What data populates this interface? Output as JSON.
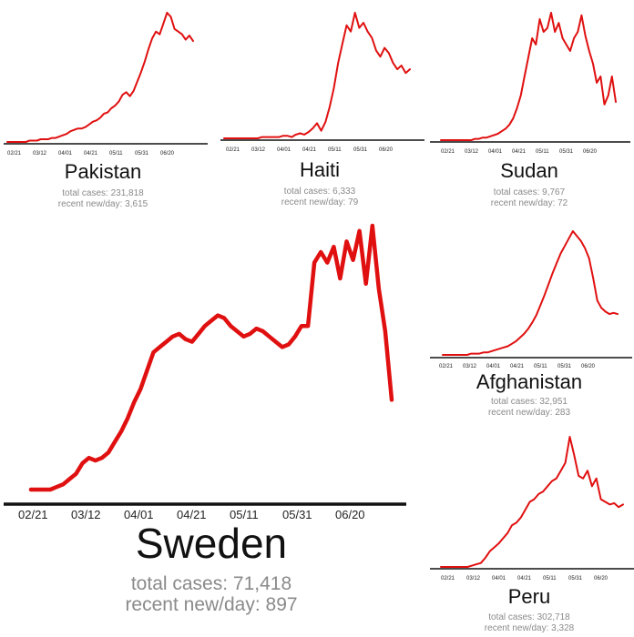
{
  "theme": {
    "line_color": "#e01010",
    "axis_color": "#111111",
    "stat_color": "#8a8a8a"
  },
  "chart_data": [
    {
      "id": "pakistan",
      "type": "line",
      "country": "Pakistan",
      "title": "Pakistan",
      "total_cases_label": "total cases: 231,818",
      "recent_label": "recent new/day: 3,615",
      "x_ticks": [
        "02/21",
        "03/12",
        "04/01",
        "04/21",
        "05/11",
        "05/31",
        "06/20"
      ],
      "values": [
        0,
        0,
        0,
        0,
        0,
        0,
        1,
        1,
        1,
        2,
        2,
        2,
        3,
        3,
        4,
        5,
        6,
        8,
        9,
        10,
        10,
        11,
        13,
        15,
        16,
        18,
        21,
        22,
        25,
        27,
        30,
        35,
        37,
        34,
        38,
        45,
        52,
        60,
        69,
        77,
        82,
        80,
        88,
        96,
        93,
        84,
        82,
        80,
        76,
        79,
        75
      ]
    },
    {
      "id": "haiti",
      "type": "line",
      "country": "Haiti",
      "title": "Haiti",
      "total_cases_label": "total cases: 6,333",
      "recent_label": "recent new/day: 79",
      "x_ticks": [
        "02/21",
        "03/12",
        "04/01",
        "04/21",
        "05/11",
        "05/31",
        "06/20"
      ],
      "values": [
        0,
        0,
        0,
        0,
        0,
        0,
        0,
        0,
        0,
        1,
        1,
        1,
        1,
        1,
        2,
        2,
        1,
        3,
        4,
        3,
        5,
        8,
        12,
        6,
        13,
        25,
        40,
        60,
        75,
        90,
        85,
        100,
        88,
        92,
        85,
        80,
        70,
        65,
        72,
        68,
        60,
        55,
        58,
        52,
        55
      ]
    },
    {
      "id": "sudan",
      "type": "line",
      "country": "Sudan",
      "title": "Sudan",
      "total_cases_label": "total cases: 9,767",
      "recent_label": "recent new/day: 72",
      "x_ticks": [
        "02/21",
        "03/12",
        "04/01",
        "04/21",
        "05/11",
        "05/31",
        "06/20"
      ],
      "values": [
        0,
        0,
        0,
        0,
        0,
        0,
        0,
        0,
        0,
        1,
        1,
        2,
        2,
        3,
        4,
        5,
        7,
        9,
        12,
        17,
        25,
        35,
        50,
        65,
        80,
        75,
        95,
        85,
        88,
        100,
        85,
        92,
        80,
        75,
        70,
        80,
        85,
        98,
        82,
        70,
        60,
        45,
        50,
        28,
        35,
        50,
        30
      ]
    },
    {
      "id": "afghanistan",
      "type": "line",
      "country": "Afghanistan",
      "title": "Afghanistan",
      "total_cases_label": "total cases: 32,951",
      "recent_label": "recent new/day: 283",
      "x_ticks": [
        "02/21",
        "03/12",
        "04/01",
        "04/21",
        "05/11",
        "05/31",
        "06/20"
      ],
      "values": [
        0,
        0,
        0,
        0,
        0,
        0,
        0,
        1,
        1,
        1,
        2,
        2,
        3,
        4,
        5,
        6,
        7,
        9,
        11,
        14,
        17,
        21,
        26,
        32,
        40,
        48,
        57,
        66,
        74,
        82,
        88,
        94,
        100,
        96,
        92,
        86,
        78,
        62,
        44,
        38,
        35,
        33,
        34,
        33
      ]
    },
    {
      "id": "peru",
      "type": "line",
      "country": "Peru",
      "title": "Peru",
      "total_cases_label": "total cases: 302,718",
      "recent_label": "recent new/day: 3,328",
      "x_ticks": [
        "02/21",
        "03/12",
        "04/01",
        "04/21",
        "05/11",
        "05/31",
        "06/20"
      ],
      "values": [
        0,
        0,
        0,
        0,
        0,
        0,
        0,
        1,
        2,
        3,
        7,
        12,
        15,
        18,
        22,
        26,
        32,
        34,
        38,
        44,
        50,
        52,
        56,
        58,
        62,
        66,
        68,
        74,
        80,
        100,
        86,
        70,
        68,
        74,
        62,
        68,
        52,
        50,
        48,
        49,
        46,
        48
      ]
    },
    {
      "id": "sweden",
      "type": "line",
      "country": "Sweden",
      "title": "Sweden",
      "total_cases_label": "total cases: 71,418",
      "recent_label": "recent new/day: 897",
      "x_ticks": [
        "02/21",
        "03/12",
        "04/01",
        "04/21",
        "05/11",
        "05/31",
        "06/20"
      ],
      "values": [
        0,
        0,
        0,
        0,
        1,
        2,
        4,
        6,
        10,
        12,
        11,
        12,
        14,
        18,
        22,
        27,
        33,
        38,
        45,
        52,
        54,
        56,
        58,
        59,
        57,
        56,
        59,
        62,
        64,
        66,
        65,
        62,
        60,
        58,
        59,
        61,
        60,
        58,
        56,
        54,
        55,
        58,
        62,
        62,
        86,
        90,
        86,
        92,
        80,
        94,
        87,
        98,
        78,
        100,
        76,
        60,
        34
      ]
    }
  ]
}
